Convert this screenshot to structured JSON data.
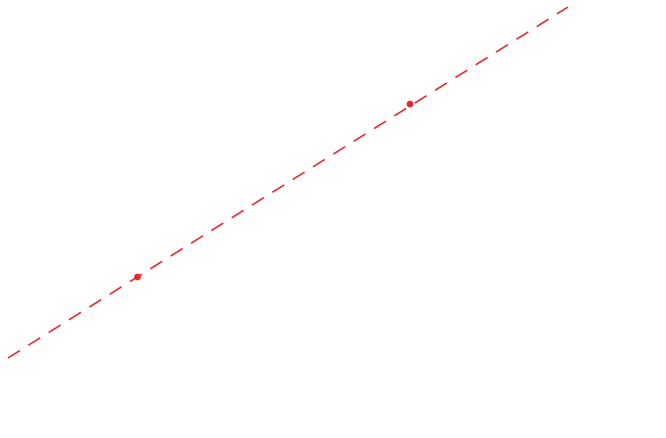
{
  "canvas": {
    "background_color": "#ffffff"
  },
  "line": {
    "style": "dashed",
    "color": "#e8262c"
  },
  "points": {
    "color": "#e8262c",
    "count": 2
  }
}
